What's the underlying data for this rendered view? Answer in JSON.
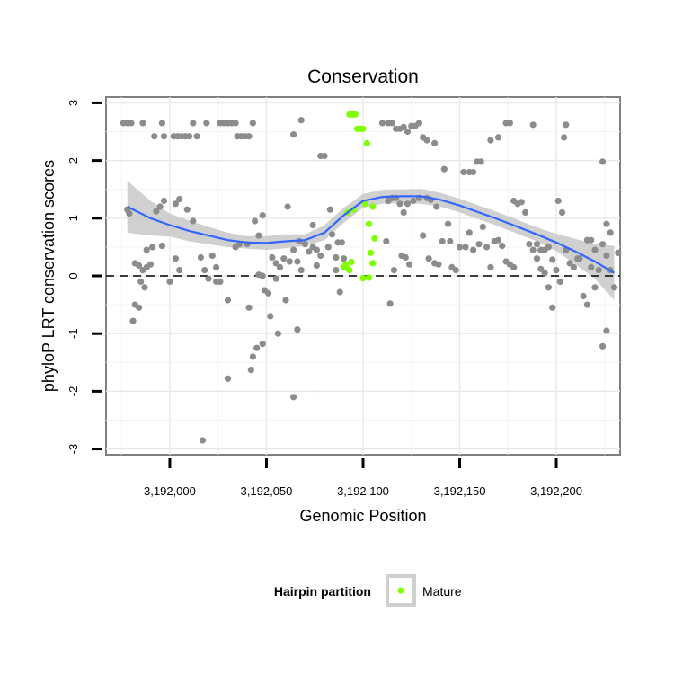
{
  "chart_data": {
    "type": "scatter",
    "title": "Conservation",
    "xlabel": "Genomic Position",
    "ylabel": "phyloP LRT conservation scores",
    "xlim": [
      3191967,
      3192233
    ],
    "ylim": [
      -3.1,
      3.1
    ],
    "x_ticks": [
      3192000,
      3192050,
      3192100,
      3192150,
      3192200
    ],
    "x_tick_labels": [
      "3,192,000",
      "3,192,050",
      "3,192,100",
      "3,192,150",
      "3,192,200"
    ],
    "y_ticks": [
      -3,
      -2,
      -1,
      0,
      1,
      2,
      3
    ],
    "y_tick_labels": [
      "-3",
      "-2",
      "-1",
      "0",
      "1",
      "2",
      "3"
    ],
    "grid": true,
    "reference_line": {
      "y": 0,
      "style": "dashed"
    },
    "legend": {
      "title": "Hairpin partition",
      "position": "bottom",
      "entries": [
        "Mature"
      ]
    },
    "colors": {
      "background_points": "#8c8c8c",
      "mature_points": "#7fff00",
      "smooth_line": "#3366ff",
      "ci_band": "#c8c8c8"
    },
    "series": [
      {
        "name": "Mature",
        "points": [
          [
            3192093,
            2.8
          ],
          [
            3192094,
            2.8
          ],
          [
            3192095,
            2.8
          ],
          [
            3192096,
            2.8
          ],
          [
            3192097,
            2.55
          ],
          [
            3192099,
            2.55
          ],
          [
            3192100,
            2.55
          ],
          [
            3192102,
            2.3
          ],
          [
            3192092,
            1.1
          ],
          [
            3192095,
            1.15
          ],
          [
            3192101,
            1.25
          ],
          [
            3192105,
            1.2
          ],
          [
            3192103,
            0.9
          ],
          [
            3192106,
            0.65
          ],
          [
            3192104,
            0.4
          ],
          [
            3192105,
            0.22
          ],
          [
            3192091,
            0.2
          ],
          [
            3192092,
            0.13
          ],
          [
            3192094,
            0.24
          ],
          [
            3192103,
            -0.03
          ],
          [
            3192100,
            -0.04
          ],
          [
            3192090,
            0.15
          ],
          [
            3192093,
            0.1
          ]
        ]
      },
      {
        "name": "",
        "points": [
          [
            3191976,
            2.65
          ],
          [
            3191978,
            2.65
          ],
          [
            3191980,
            2.65
          ],
          [
            3191986,
            2.65
          ],
          [
            3191992,
            2.42
          ],
          [
            3191996,
            2.65
          ],
          [
            3191997,
            2.42
          ],
          [
            3192002,
            2.42
          ],
          [
            3192004,
            2.42
          ],
          [
            3192006,
            2.42
          ],
          [
            3192008,
            2.42
          ],
          [
            3192010,
            2.42
          ],
          [
            3192012,
            2.65
          ],
          [
            3192014,
            2.42
          ],
          [
            3192019,
            2.65
          ],
          [
            3192026,
            2.65
          ],
          [
            3192028,
            2.65
          ],
          [
            3192030,
            2.65
          ],
          [
            3192032,
            2.65
          ],
          [
            3192034,
            2.65
          ],
          [
            3192035,
            2.42
          ],
          [
            3192037,
            2.42
          ],
          [
            3192039,
            2.42
          ],
          [
            3192041,
            2.42
          ],
          [
            3192043,
            2.65
          ],
          [
            3192064,
            2.45
          ],
          [
            3192068,
            2.7
          ],
          [
            3192078,
            2.08
          ],
          [
            3192080,
            2.08
          ],
          [
            3192083,
            1.15
          ],
          [
            3191978,
            1.15
          ],
          [
            3191979,
            1.08
          ],
          [
            3191995,
            1.2
          ],
          [
            3191997,
            1.3
          ],
          [
            3192003,
            1.25
          ],
          [
            3192005,
            1.33
          ],
          [
            3192009,
            1.15
          ],
          [
            3192012,
            0.95
          ],
          [
            3191988,
            0.45
          ],
          [
            3191991,
            0.5
          ],
          [
            3191993,
            1.12
          ],
          [
            3191996,
            0.52
          ],
          [
            3191982,
            0.22
          ],
          [
            3191984,
            0.18
          ],
          [
            3191986,
            0.1
          ],
          [
            3191988,
            0.15
          ],
          [
            3191990,
            0.2
          ],
          [
            3191985,
            -0.1
          ],
          [
            3191987,
            -0.2
          ],
          [
            3191982,
            -0.5
          ],
          [
            3191984,
            -0.55
          ],
          [
            3191981,
            -0.78
          ],
          [
            3192000,
            -0.1
          ],
          [
            3192003,
            0.3
          ],
          [
            3192005,
            0.1
          ],
          [
            3192016,
            0.32
          ],
          [
            3192018,
            0.1
          ],
          [
            3192022,
            0.35
          ],
          [
            3192024,
            0.15
          ],
          [
            3192020,
            -0.05
          ],
          [
            3192024,
            -0.1
          ],
          [
            3192026,
            -0.1
          ],
          [
            3192030,
            -0.42
          ],
          [
            3192034,
            0.5
          ],
          [
            3192036,
            0.55
          ],
          [
            3192040,
            0.55
          ],
          [
            3192041,
            -0.55
          ],
          [
            3192044,
            0.95
          ],
          [
            3192046,
            0.7
          ],
          [
            3192048,
            1.05
          ],
          [
            3192046,
            0.02
          ],
          [
            3192048,
            0.0
          ],
          [
            3192049,
            -0.25
          ],
          [
            3192051,
            -0.3
          ],
          [
            3192053,
            0.32
          ],
          [
            3192055,
            0.22
          ],
          [
            3192057,
            0.15
          ],
          [
            3192059,
            0.3
          ],
          [
            3192055,
            -0.05
          ],
          [
            3192052,
            -0.7
          ],
          [
            3192056,
            -1.0
          ],
          [
            3192060,
            -0.42
          ],
          [
            3192062,
            0.25
          ],
          [
            3192064,
            0.45
          ],
          [
            3192066,
            0.25
          ],
          [
            3192068,
            0.1
          ],
          [
            3192067,
            0.6
          ],
          [
            3192070,
            0.55
          ],
          [
            3192072,
            0.42
          ],
          [
            3192074,
            0.5
          ],
          [
            3192076,
            0.45
          ],
          [
            3192078,
            0.35
          ],
          [
            3192066,
            -0.93
          ],
          [
            3192064,
            -2.1
          ],
          [
            3192042,
            -1.63
          ],
          [
            3192043,
            -1.4
          ],
          [
            3192045,
            -1.25
          ],
          [
            3192048,
            -1.18
          ],
          [
            3192017,
            -2.85
          ],
          [
            3192030,
            -1.78
          ],
          [
            3192061,
            1.2
          ],
          [
            3192074,
            0.88
          ],
          [
            3192076,
            0.18
          ],
          [
            3192082,
            0.5
          ],
          [
            3192084,
            0.72
          ],
          [
            3192086,
            0.32
          ],
          [
            3192087,
            0.58
          ],
          [
            3192089,
            0.58
          ],
          [
            3192086,
            0.1
          ],
          [
            3192088,
            -0.28
          ],
          [
            3192090,
            0.3
          ],
          [
            3192110,
            2.65
          ],
          [
            3192113,
            2.65
          ],
          [
            3192115,
            2.65
          ],
          [
            3192117,
            2.55
          ],
          [
            3192119,
            2.55
          ],
          [
            3192121,
            2.58
          ],
          [
            3192123,
            2.5
          ],
          [
            3192125,
            2.6
          ],
          [
            3192127,
            2.6
          ],
          [
            3192129,
            2.65
          ],
          [
            3192131,
            2.4
          ],
          [
            3192133,
            2.35
          ],
          [
            3192137,
            2.3
          ],
          [
            3192113,
            1.3
          ],
          [
            3192115,
            1.35
          ],
          [
            3192117,
            1.35
          ],
          [
            3192119,
            1.25
          ],
          [
            3192121,
            1.1
          ],
          [
            3192123,
            1.25
          ],
          [
            3192126,
            1.3
          ],
          [
            3192129,
            1.35
          ],
          [
            3192133,
            1.35
          ],
          [
            3192135,
            1.32
          ],
          [
            3192138,
            1.2
          ],
          [
            3192112,
            0.6
          ],
          [
            3192114,
            -0.48
          ],
          [
            3192116,
            0.1
          ],
          [
            3192120,
            0.35
          ],
          [
            3192122,
            0.32
          ],
          [
            3192124,
            0.2
          ],
          [
            3192131,
            0.7
          ],
          [
            3192134,
            0.3
          ],
          [
            3192137,
            0.22
          ],
          [
            3192139,
            0.2
          ],
          [
            3192141,
            0.6
          ],
          [
            3192142,
            1.85
          ],
          [
            3192144,
            0.9
          ],
          [
            3192146,
            0.15
          ],
          [
            3192148,
            0.1
          ],
          [
            3192145,
            0.6
          ],
          [
            3192150,
            0.5
          ],
          [
            3192153,
            0.5
          ],
          [
            3192155,
            0.75
          ],
          [
            3192157,
            0.45
          ],
          [
            3192160,
            0.55
          ],
          [
            3192152,
            1.8
          ],
          [
            3192155,
            1.8
          ],
          [
            3192157,
            1.8
          ],
          [
            3192159,
            1.98
          ],
          [
            3192161,
            1.98
          ],
          [
            3192162,
            0.85
          ],
          [
            3192164,
            0.5
          ],
          [
            3192166,
            0.15
          ],
          [
            3192168,
            0.6
          ],
          [
            3192170,
            0.62
          ],
          [
            3192172,
            0.52
          ],
          [
            3192174,
            0.25
          ],
          [
            3192176,
            0.2
          ],
          [
            3192178,
            0.15
          ],
          [
            3192166,
            2.35
          ],
          [
            3192174,
            2.65
          ],
          [
            3192176,
            2.65
          ],
          [
            3192178,
            1.3
          ],
          [
            3192180,
            1.25
          ],
          [
            3192182,
            1.28
          ],
          [
            3192184,
            1.1
          ],
          [
            3192186,
            0.55
          ],
          [
            3192188,
            0.45
          ],
          [
            3192190,
            0.55
          ],
          [
            3192192,
            0.45
          ],
          [
            3192194,
            0.45
          ],
          [
            3192170,
            2.4
          ],
          [
            3192188,
            2.62
          ],
          [
            3192190,
            0.3
          ],
          [
            3192192,
            0.12
          ],
          [
            3192194,
            0.05
          ],
          [
            3192196,
            0.5
          ],
          [
            3192198,
            0.28
          ],
          [
            3192200,
            0.1
          ],
          [
            3192202,
            -0.1
          ],
          [
            3192196,
            -0.2
          ],
          [
            3192198,
            -0.55
          ],
          [
            3192201,
            1.3
          ],
          [
            3192203,
            1.1
          ],
          [
            3192205,
            0.45
          ],
          [
            3192207,
            0.22
          ],
          [
            3192209,
            0.15
          ],
          [
            3192211,
            0.3
          ],
          [
            3192205,
            2.62
          ],
          [
            3192204,
            2.4
          ],
          [
            3192212,
            0.3
          ],
          [
            3192214,
            -0.35
          ],
          [
            3192216,
            -0.5
          ],
          [
            3192218,
            0.15
          ],
          [
            3192220,
            -0.2
          ],
          [
            3192222,
            0.1
          ],
          [
            3192216,
            0.62
          ],
          [
            3192218,
            0.62
          ],
          [
            3192220,
            0.45
          ],
          [
            3192224,
            0.55
          ],
          [
            3192224,
            1.98
          ],
          [
            3192226,
            0.35
          ],
          [
            3192228,
            0.1
          ],
          [
            3192230,
            -0.2
          ],
          [
            3192232,
            0.4
          ],
          [
            3192226,
            0.9
          ],
          [
            3192228,
            0.75
          ],
          [
            3192224,
            -1.22
          ],
          [
            3192226,
            -0.95
          ]
        ]
      }
    ],
    "smooth_fit": {
      "x": [
        3191978,
        3191990,
        3192000,
        3192010,
        3192020,
        3192030,
        3192040,
        3192050,
        3192060,
        3192070,
        3192080,
        3192090,
        3192100,
        3192110,
        3192120,
        3192130,
        3192140,
        3192150,
        3192160,
        3192170,
        3192180,
        3192190,
        3192200,
        3192210,
        3192220,
        3192230
      ],
      "y": [
        1.2,
        1.0,
        0.88,
        0.78,
        0.7,
        0.62,
        0.58,
        0.57,
        0.6,
        0.62,
        0.75,
        1.05,
        1.3,
        1.37,
        1.38,
        1.38,
        1.32,
        1.22,
        1.1,
        0.98,
        0.85,
        0.72,
        0.58,
        0.42,
        0.25,
        0.05
      ],
      "ci_low": [
        0.75,
        0.7,
        0.68,
        0.6,
        0.55,
        0.5,
        0.47,
        0.45,
        0.48,
        0.52,
        0.62,
        0.92,
        1.18,
        1.25,
        1.26,
        1.25,
        1.2,
        1.1,
        0.98,
        0.86,
        0.73,
        0.6,
        0.43,
        0.2,
        -0.05,
        -0.42
      ],
      "ci_high": [
        1.65,
        1.3,
        1.08,
        0.96,
        0.85,
        0.75,
        0.69,
        0.69,
        0.72,
        0.72,
        0.88,
        1.18,
        1.42,
        1.49,
        1.5,
        1.51,
        1.44,
        1.34,
        1.22,
        1.1,
        0.97,
        0.84,
        0.73,
        0.64,
        0.55,
        0.52
      ]
    }
  }
}
